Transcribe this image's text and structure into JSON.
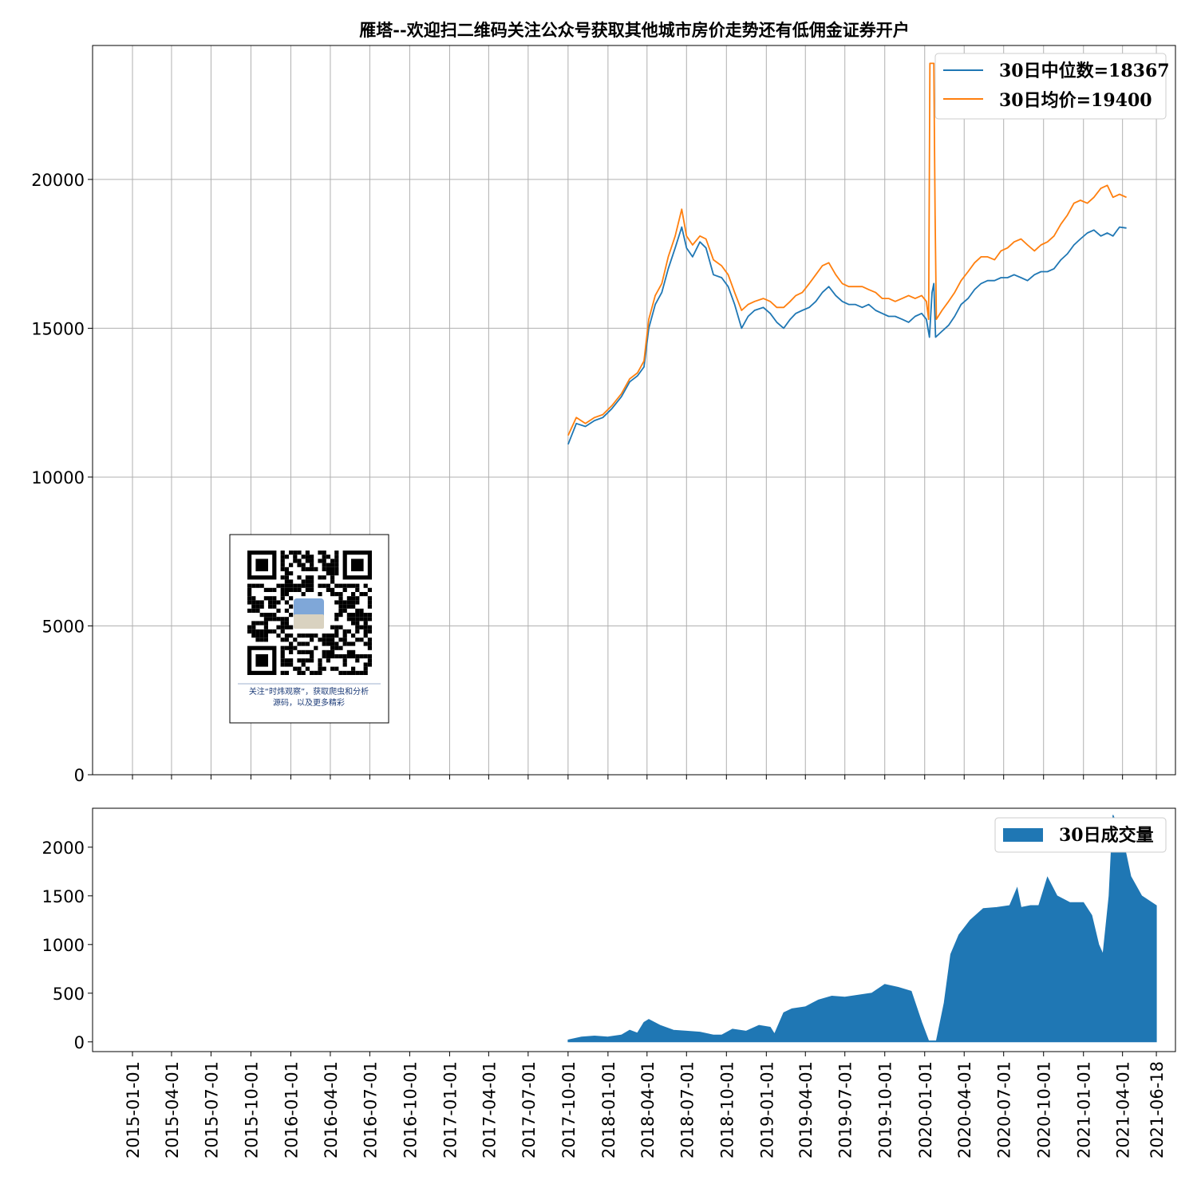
{
  "chart_data": [
    {
      "type": "line",
      "title": "雁塔--欢迎扫二维码关注公众号获取其他城市房价走势还有低佣金证券开户",
      "xlabel": "",
      "ylabel": "",
      "xlim": [
        "2014-10-01",
        "2021-08-01"
      ],
      "ylim": [
        0,
        24500
      ],
      "yticks": [
        0,
        5000,
        10000,
        15000,
        20000
      ],
      "grid": true,
      "legend_position": "upper right",
      "series": [
        {
          "name": "30日中位数=18367",
          "color": "#1f77b4",
          "points": [
            [
              "2017-10-01",
              11100
            ],
            [
              "2017-10-20",
              11800
            ],
            [
              "2017-11-10",
              11700
            ],
            [
              "2017-12-01",
              11900
            ],
            [
              "2017-12-20",
              12000
            ],
            [
              "2018-01-10",
              12300
            ],
            [
              "2018-02-01",
              12700
            ],
            [
              "2018-02-20",
              13200
            ],
            [
              "2018-03-10",
              13400
            ],
            [
              "2018-03-25",
              13700
            ],
            [
              "2018-04-05",
              15000
            ],
            [
              "2018-04-20",
              15800
            ],
            [
              "2018-05-05",
              16200
            ],
            [
              "2018-05-20",
              17000
            ],
            [
              "2018-06-05",
              17700
            ],
            [
              "2018-06-20",
              18400
            ],
            [
              "2018-07-01",
              17700
            ],
            [
              "2018-07-15",
              17400
            ],
            [
              "2018-08-01",
              17900
            ],
            [
              "2018-08-15",
              17700
            ],
            [
              "2018-09-01",
              16800
            ],
            [
              "2018-09-20",
              16700
            ],
            [
              "2018-10-05",
              16400
            ],
            [
              "2018-10-20",
              15800
            ],
            [
              "2018-11-05",
              15000
            ],
            [
              "2018-11-20",
              15400
            ],
            [
              "2018-12-05",
              15600
            ],
            [
              "2018-12-25",
              15700
            ],
            [
              "2019-01-10",
              15500
            ],
            [
              "2019-01-25",
              15200
            ],
            [
              "2019-02-10",
              15000
            ],
            [
              "2019-02-25",
              15300
            ],
            [
              "2019-03-10",
              15500
            ],
            [
              "2019-03-25",
              15600
            ],
            [
              "2019-04-10",
              15700
            ],
            [
              "2019-04-25",
              15900
            ],
            [
              "2019-05-10",
              16200
            ],
            [
              "2019-05-25",
              16400
            ],
            [
              "2019-06-10",
              16100
            ],
            [
              "2019-06-25",
              15900
            ],
            [
              "2019-07-10",
              15800
            ],
            [
              "2019-07-25",
              15800
            ],
            [
              "2019-08-10",
              15700
            ],
            [
              "2019-08-25",
              15800
            ],
            [
              "2019-09-10",
              15600
            ],
            [
              "2019-09-25",
              15500
            ],
            [
              "2019-10-10",
              15400
            ],
            [
              "2019-10-25",
              15400
            ],
            [
              "2019-11-10",
              15300
            ],
            [
              "2019-11-25",
              15200
            ],
            [
              "2019-12-10",
              15400
            ],
            [
              "2019-12-25",
              15500
            ],
            [
              "2020-01-05",
              15300
            ],
            [
              "2020-01-12",
              14700
            ],
            [
              "2020-01-18",
              16200
            ],
            [
              "2020-01-22",
              16500
            ],
            [
              "2020-01-26",
              14700
            ],
            [
              "2020-02-10",
              14900
            ],
            [
              "2020-02-25",
              15100
            ],
            [
              "2020-03-10",
              15400
            ],
            [
              "2020-03-25",
              15800
            ],
            [
              "2020-04-10",
              16000
            ],
            [
              "2020-04-25",
              16300
            ],
            [
              "2020-05-10",
              16500
            ],
            [
              "2020-05-25",
              16600
            ],
            [
              "2020-06-10",
              16600
            ],
            [
              "2020-06-25",
              16700
            ],
            [
              "2020-07-10",
              16700
            ],
            [
              "2020-07-25",
              16800
            ],
            [
              "2020-08-10",
              16700
            ],
            [
              "2020-08-25",
              16600
            ],
            [
              "2020-09-10",
              16800
            ],
            [
              "2020-09-25",
              16900
            ],
            [
              "2020-10-10",
              16900
            ],
            [
              "2020-10-25",
              17000
            ],
            [
              "2020-11-10",
              17300
            ],
            [
              "2020-11-25",
              17500
            ],
            [
              "2020-12-10",
              17800
            ],
            [
              "2020-12-25",
              18000
            ],
            [
              "2021-01-10",
              18200
            ],
            [
              "2021-01-25",
              18300
            ],
            [
              "2021-02-10",
              18100
            ],
            [
              "2021-02-25",
              18200
            ],
            [
              "2021-03-10",
              18100
            ],
            [
              "2021-03-25",
              18400
            ],
            [
              "2021-04-10",
              18367
            ]
          ]
        },
        {
          "name": "30日均价=19400",
          "color": "#ff7f0e",
          "points": [
            [
              "2017-10-01",
              11400
            ],
            [
              "2017-10-20",
              12000
            ],
            [
              "2017-11-10",
              11800
            ],
            [
              "2017-12-01",
              12000
            ],
            [
              "2017-12-20",
              12100
            ],
            [
              "2018-01-10",
              12400
            ],
            [
              "2018-02-01",
              12800
            ],
            [
              "2018-02-20",
              13300
            ],
            [
              "2018-03-10",
              13500
            ],
            [
              "2018-03-25",
              13900
            ],
            [
              "2018-04-05",
              15300
            ],
            [
              "2018-04-20",
              16100
            ],
            [
              "2018-05-05",
              16500
            ],
            [
              "2018-05-20",
              17400
            ],
            [
              "2018-06-05",
              18100
            ],
            [
              "2018-06-20",
              19000
            ],
            [
              "2018-07-01",
              18100
            ],
            [
              "2018-07-15",
              17800
            ],
            [
              "2018-08-01",
              18100
            ],
            [
              "2018-08-15",
              18000
            ],
            [
              "2018-09-01",
              17300
            ],
            [
              "2018-09-20",
              17100
            ],
            [
              "2018-10-05",
              16800
            ],
            [
              "2018-10-20",
              16200
            ],
            [
              "2018-11-05",
              15600
            ],
            [
              "2018-11-20",
              15800
            ],
            [
              "2018-12-05",
              15900
            ],
            [
              "2018-12-25",
              16000
            ],
            [
              "2019-01-10",
              15900
            ],
            [
              "2019-01-25",
              15700
            ],
            [
              "2019-02-10",
              15700
            ],
            [
              "2019-02-25",
              15900
            ],
            [
              "2019-03-10",
              16100
            ],
            [
              "2019-03-25",
              16200
            ],
            [
              "2019-04-10",
              16500
            ],
            [
              "2019-04-25",
              16800
            ],
            [
              "2019-05-10",
              17100
            ],
            [
              "2019-05-25",
              17200
            ],
            [
              "2019-06-10",
              16800
            ],
            [
              "2019-06-25",
              16500
            ],
            [
              "2019-07-10",
              16400
            ],
            [
              "2019-07-25",
              16400
            ],
            [
              "2019-08-10",
              16400
            ],
            [
              "2019-08-25",
              16300
            ],
            [
              "2019-09-10",
              16200
            ],
            [
              "2019-09-25",
              16000
            ],
            [
              "2019-10-10",
              16000
            ],
            [
              "2019-10-25",
              15900
            ],
            [
              "2019-11-10",
              16000
            ],
            [
              "2019-11-25",
              16100
            ],
            [
              "2019-12-10",
              16000
            ],
            [
              "2019-12-25",
              16100
            ],
            [
              "2020-01-05",
              15900
            ],
            [
              "2020-01-10",
              15300
            ],
            [
              "2020-01-13",
              23900
            ],
            [
              "2020-01-22",
              23900
            ],
            [
              "2020-01-25",
              18800
            ],
            [
              "2020-01-28",
              15300
            ],
            [
              "2020-02-10",
              15600
            ],
            [
              "2020-02-25",
              15900
            ],
            [
              "2020-03-10",
              16200
            ],
            [
              "2020-03-25",
              16600
            ],
            [
              "2020-04-10",
              16900
            ],
            [
              "2020-04-25",
              17200
            ],
            [
              "2020-05-10",
              17400
            ],
            [
              "2020-05-25",
              17400
            ],
            [
              "2020-06-10",
              17300
            ],
            [
              "2020-06-25",
              17600
            ],
            [
              "2020-07-10",
              17700
            ],
            [
              "2020-07-25",
              17900
            ],
            [
              "2020-08-10",
              18000
            ],
            [
              "2020-08-25",
              17800
            ],
            [
              "2020-09-10",
              17600
            ],
            [
              "2020-09-25",
              17800
            ],
            [
              "2020-10-10",
              17900
            ],
            [
              "2020-10-25",
              18100
            ],
            [
              "2020-11-10",
              18500
            ],
            [
              "2020-11-25",
              18800
            ],
            [
              "2020-12-10",
              19200
            ],
            [
              "2020-12-25",
              19300
            ],
            [
              "2021-01-10",
              19200
            ],
            [
              "2021-01-25",
              19400
            ],
            [
              "2021-02-10",
              19700
            ],
            [
              "2021-02-25",
              19800
            ],
            [
              "2021-03-10",
              19400
            ],
            [
              "2021-03-25",
              19500
            ],
            [
              "2021-04-10",
              19400
            ]
          ]
        }
      ]
    },
    {
      "type": "area",
      "xlabel": "",
      "ylabel": "",
      "xlim": [
        "2014-10-01",
        "2021-08-01"
      ],
      "ylim": [
        -100,
        2400
      ],
      "yticks": [
        0,
        500,
        1000,
        1500,
        2000
      ],
      "grid": false,
      "legend_position": "upper right",
      "xticks": [
        "2015-01-01",
        "2015-04-01",
        "2015-07-01",
        "2015-10-01",
        "2016-01-01",
        "2016-04-01",
        "2016-07-01",
        "2016-10-01",
        "2017-01-01",
        "2017-04-01",
        "2017-07-01",
        "2017-10-01",
        "2018-01-01",
        "2018-04-01",
        "2018-07-01",
        "2018-10-01",
        "2019-01-01",
        "2019-04-01",
        "2019-07-01",
        "2019-10-01",
        "2020-01-01",
        "2020-04-01",
        "2020-07-01",
        "2020-10-01",
        "2021-01-01",
        "2021-04-01",
        "2021-06-18"
      ],
      "series": [
        {
          "name": "30日成交量",
          "color": "#1f77b4",
          "points": [
            [
              "2017-10-01",
              20
            ],
            [
              "2017-11-01",
              50
            ],
            [
              "2017-12-01",
              60
            ],
            [
              "2018-01-01",
              50
            ],
            [
              "2018-02-01",
              70
            ],
            [
              "2018-02-20",
              120
            ],
            [
              "2018-03-10",
              90
            ],
            [
              "2018-03-25",
              200
            ],
            [
              "2018-04-05",
              230
            ],
            [
              "2018-05-01",
              170
            ],
            [
              "2018-06-01",
              120
            ],
            [
              "2018-07-01",
              110
            ],
            [
              "2018-08-01",
              100
            ],
            [
              "2018-09-01",
              70
            ],
            [
              "2018-09-20",
              70
            ],
            [
              "2018-10-15",
              130
            ],
            [
              "2018-11-15",
              110
            ],
            [
              "2018-12-15",
              170
            ],
            [
              "2019-01-10",
              150
            ],
            [
              "2019-01-20",
              80
            ],
            [
              "2019-02-10",
              300
            ],
            [
              "2019-03-01",
              340
            ],
            [
              "2019-04-01",
              360
            ],
            [
              "2019-05-01",
              430
            ],
            [
              "2019-06-01",
              470
            ],
            [
              "2019-07-01",
              460
            ],
            [
              "2019-08-01",
              480
            ],
            [
              "2019-09-01",
              500
            ],
            [
              "2019-10-01",
              590
            ],
            [
              "2019-11-01",
              560
            ],
            [
              "2019-12-01",
              520
            ],
            [
              "2019-12-25",
              200
            ],
            [
              "2020-01-10",
              10
            ],
            [
              "2020-01-28",
              10
            ],
            [
              "2020-02-15",
              400
            ],
            [
              "2020-03-01",
              900
            ],
            [
              "2020-03-20",
              1100
            ],
            [
              "2020-04-15",
              1250
            ],
            [
              "2020-05-15",
              1370
            ],
            [
              "2020-06-15",
              1380
            ],
            [
              "2020-07-15",
              1400
            ],
            [
              "2020-08-01",
              1580
            ],
            [
              "2020-08-10",
              1380
            ],
            [
              "2020-09-01",
              1400
            ],
            [
              "2020-09-20",
              1400
            ],
            [
              "2020-10-10",
              1690
            ],
            [
              "2020-11-01",
              1500
            ],
            [
              "2020-12-01",
              1430
            ],
            [
              "2021-01-01",
              1430
            ],
            [
              "2021-01-20",
              1300
            ],
            [
              "2021-02-05",
              1000
            ],
            [
              "2021-02-15",
              900
            ],
            [
              "2021-03-01",
              1500
            ],
            [
              "2021-03-10",
              2330
            ],
            [
              "2021-04-01",
              2100
            ],
            [
              "2021-04-20",
              1700
            ],
            [
              "2021-05-15",
              1500
            ],
            [
              "2021-06-18",
              1400
            ]
          ]
        }
      ]
    }
  ],
  "qr_box": {
    "caption_line1": "关注“时炜观察”，获取爬虫和分析",
    "caption_line2": "源码，以及更多精彩"
  }
}
